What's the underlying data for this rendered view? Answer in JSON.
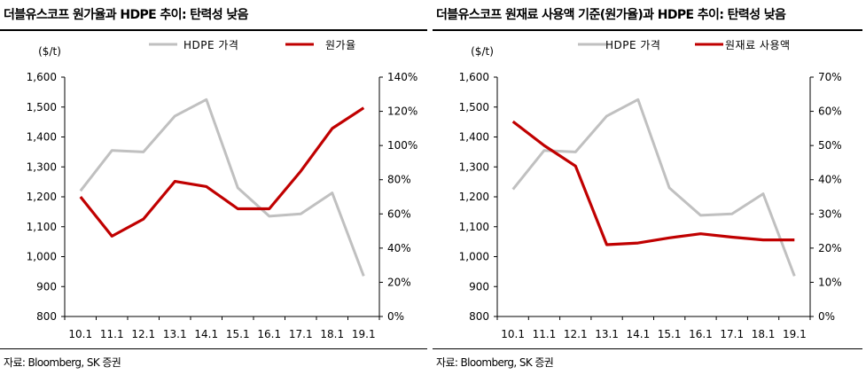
{
  "chart_data": [
    {
      "type": "line",
      "title": "더블유스코프 원가율과 HDPE 추이: 탄력성 낮음",
      "y_left_label": "($/t)",
      "categories": [
        "10.1",
        "11.1",
        "12.1",
        "13.1",
        "14.1",
        "15.1",
        "16.1",
        "17.1",
        "18.1",
        "19.1"
      ],
      "x": [
        0,
        0.9,
        1.8,
        2.7,
        3.6,
        4.5,
        5.4,
        6.3,
        7.2,
        8.1,
        9.0
      ],
      "y_left_ticks": [
        "800",
        "900",
        "1,000",
        "1,100",
        "1,200",
        "1,300",
        "1,400",
        "1,500",
        "1,600"
      ],
      "y_right_ticks": [
        "0%",
        "20%",
        "40%",
        "60%",
        "80%",
        "100%",
        "120%",
        "140%"
      ],
      "y_left_range": [
        800,
        1600
      ],
      "y_right_range": [
        0,
        140
      ],
      "series": [
        {
          "name": "HDPE 가격",
          "axis": "left",
          "color": "#c0c0c0",
          "values": [
            1220,
            1355,
            1350,
            1470,
            1525,
            1230,
            1135,
            1143,
            1213,
            935
          ]
        },
        {
          "name": "원가율",
          "axis": "right",
          "color": "#c00000",
          "values": [
            70,
            47,
            57,
            79,
            76,
            63,
            63,
            85,
            110,
            122
          ]
        }
      ],
      "source": "자료: Bloomberg, SK 증권"
    },
    {
      "type": "line",
      "title": "더블유스코프 원재료 사용액 기준(원가율)과 HDPE 추이: 탄력성 낮음",
      "y_left_label": "($/t)",
      "categories": [
        "10.1",
        "11.1",
        "12.1",
        "13.1",
        "14.1",
        "15.1",
        "16.1",
        "17.1",
        "18.1",
        "19.1"
      ],
      "y_left_ticks": [
        "800",
        "900",
        "1,000",
        "1,100",
        "1,200",
        "1,300",
        "1,400",
        "1,500",
        "1,600"
      ],
      "y_right_ticks": [
        "0%",
        "10%",
        "20%",
        "30%",
        "40%",
        "50%",
        "60%",
        "70%"
      ],
      "y_left_range": [
        800,
        1600
      ],
      "y_right_range": [
        0,
        70
      ],
      "series": [
        {
          "name": "HDPE 가격",
          "axis": "left",
          "color": "#c0c0c0",
          "values": [
            1225,
            1355,
            1350,
            1470,
            1525,
            1230,
            1138,
            1143,
            1210,
            935
          ]
        },
        {
          "name": "원재료 사용액",
          "axis": "right",
          "color": "#c00000",
          "values": [
            57,
            50,
            44,
            21,
            21.5,
            23,
            24.2,
            23.2,
            22.4,
            22.4
          ]
        }
      ],
      "source": "자료: Bloomberg, SK 증권"
    }
  ]
}
